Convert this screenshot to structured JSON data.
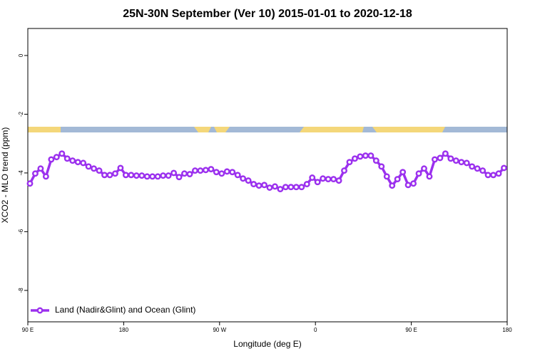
{
  "chart_data": {
    "type": "line",
    "title": "25N-30N September (Ver 10)   2015-01-01 to 2020-12-18",
    "xlabel": "Longitude (deg E)",
    "ylabel": "XCO2 - MLO trend (ppm)",
    "xlim": [
      90,
      540
    ],
    "xticks": [
      {
        "value": 90,
        "label": "90 E"
      },
      180,
      {
        "value": 270,
        "label": "90 W"
      },
      {
        "value": 360,
        "label": "0"
      },
      {
        "value": 450,
        "label": "90 E"
      },
      {
        "value": 540,
        "label": "180"
      }
    ],
    "ylim": [
      -9.07,
      0.92
    ],
    "yticks": [
      0,
      -2,
      -4,
      -6,
      -8
    ],
    "legend": "bottom left",
    "x": [
      92,
      97,
      102,
      107,
      112,
      117,
      122,
      127,
      132,
      137,
      142,
      147,
      152,
      157,
      162,
      167,
      172,
      177,
      182,
      187,
      192,
      197,
      202,
      207,
      212,
      217,
      222,
      227,
      232,
      237,
      242,
      247,
      252,
      257,
      262,
      267,
      272,
      277,
      282,
      287,
      292,
      297,
      302,
      307,
      312,
      317,
      322,
      327,
      332,
      337,
      342,
      347,
      352,
      357,
      362,
      367,
      372,
      377,
      382,
      387,
      392,
      397,
      402,
      407,
      412,
      417,
      422,
      427,
      432,
      437,
      442,
      447,
      452,
      457,
      462,
      467,
      472,
      477,
      482,
      487,
      492,
      497,
      502,
      507,
      512,
      517,
      522,
      527,
      532,
      537
    ],
    "series": [
      {
        "name": "Land (Nadir&Glint) and Ocean (Glint)",
        "color": "#9b30ee",
        "values": [
          -4.36,
          -4.02,
          -3.85,
          -4.12,
          -3.54,
          -3.46,
          -3.34,
          -3.51,
          -3.58,
          -3.63,
          -3.66,
          -3.78,
          -3.85,
          -3.92,
          -4.07,
          -4.07,
          -4.02,
          -3.83,
          -4.07,
          -4.07,
          -4.09,
          -4.09,
          -4.12,
          -4.12,
          -4.12,
          -4.09,
          -4.09,
          -4.0,
          -4.14,
          -4.02,
          -4.04,
          -3.92,
          -3.92,
          -3.9,
          -3.87,
          -3.97,
          -4.02,
          -3.95,
          -3.97,
          -4.07,
          -4.19,
          -4.26,
          -4.38,
          -4.43,
          -4.41,
          -4.5,
          -4.46,
          -4.55,
          -4.48,
          -4.48,
          -4.48,
          -4.48,
          -4.38,
          -4.16,
          -4.31,
          -4.19,
          -4.21,
          -4.21,
          -4.26,
          -3.92,
          -3.63,
          -3.51,
          -3.44,
          -3.41,
          -3.41,
          -3.58,
          -3.78,
          -4.12,
          -4.43,
          -4.21,
          -3.97,
          -4.41,
          -4.36,
          -4.02,
          -3.85,
          -4.12,
          -3.54,
          -3.49,
          -3.34,
          -3.51,
          -3.58,
          -3.63,
          -3.66,
          -3.78,
          -3.85,
          -3.92,
          -4.07,
          -4.07,
          -4.02,
          -3.83
        ]
      }
    ]
  }
}
